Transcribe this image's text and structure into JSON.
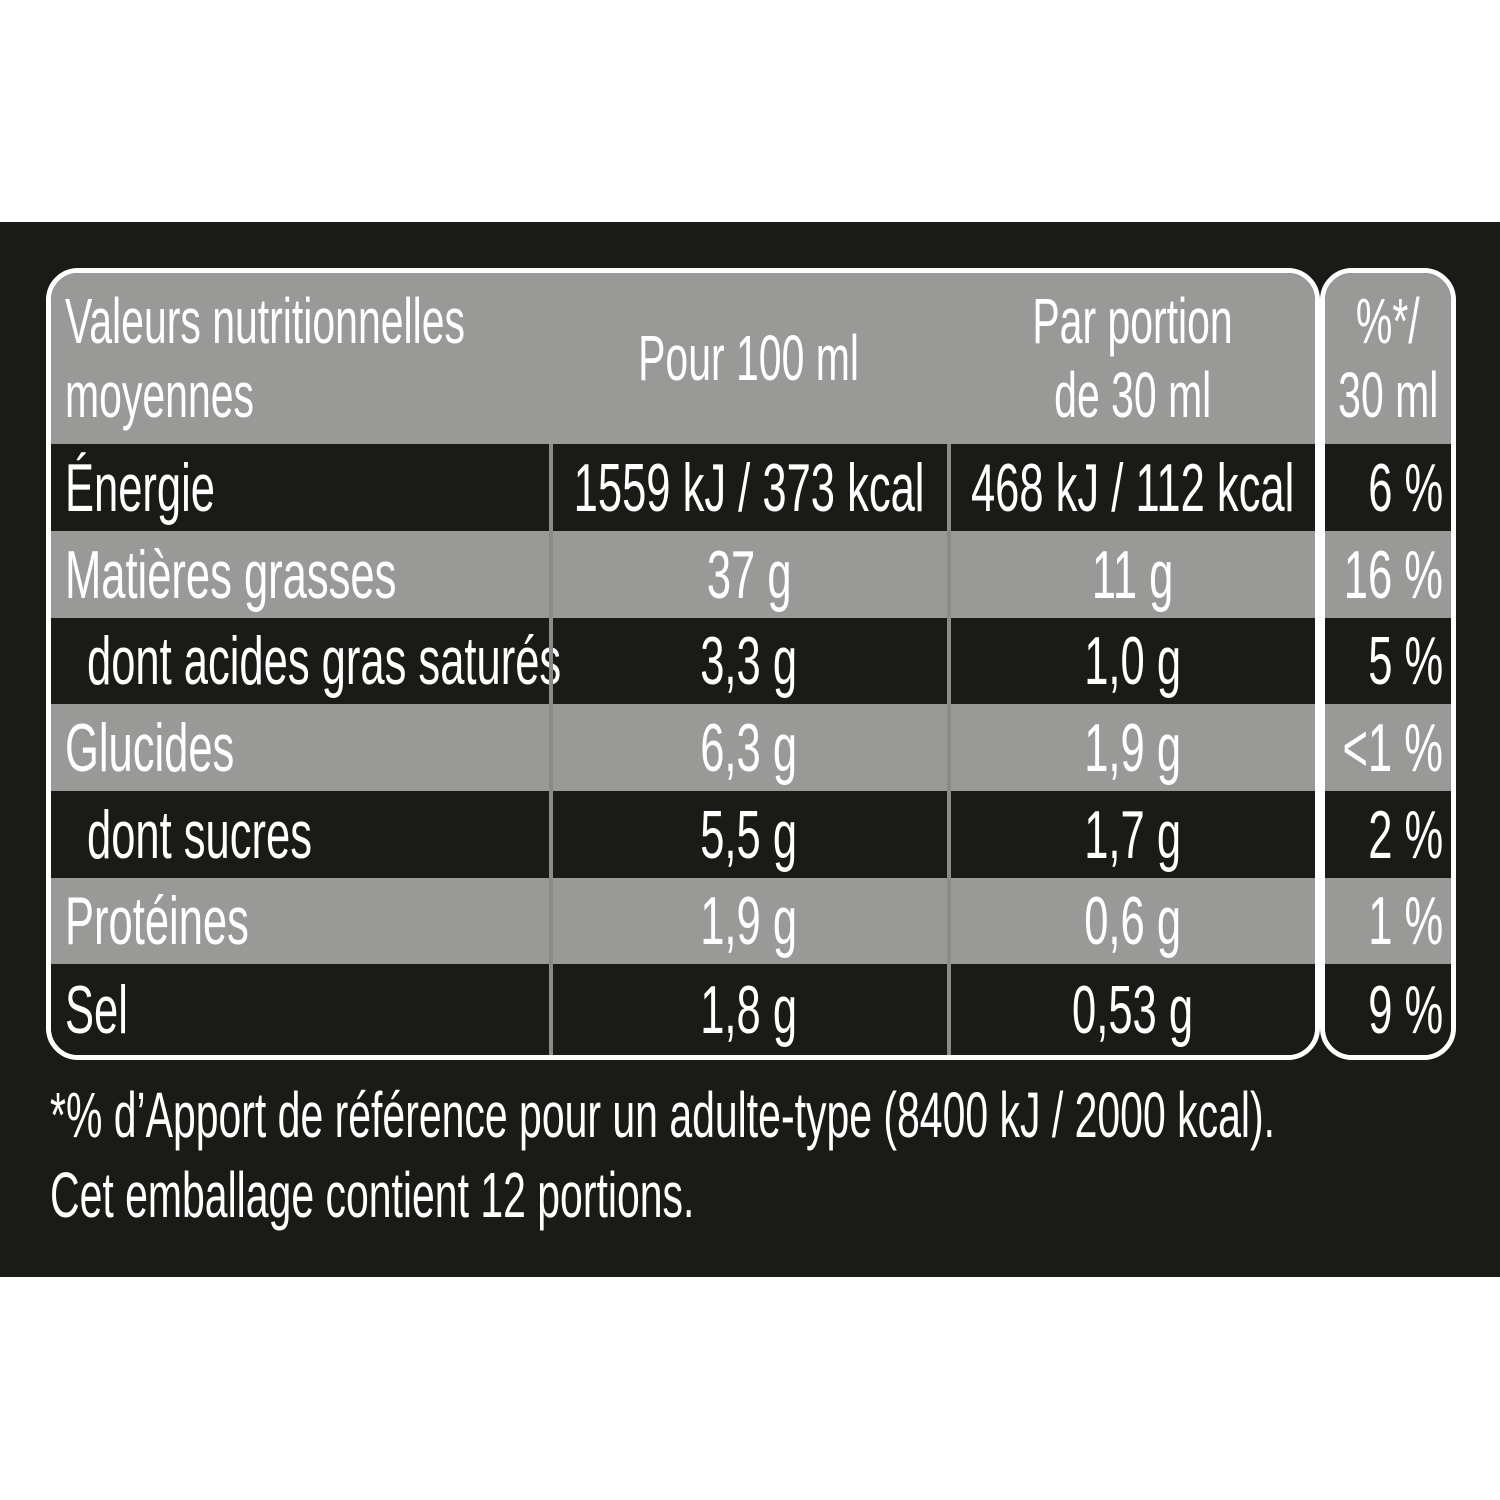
{
  "header": {
    "label_line1": "Valeurs nutritionnelles",
    "label_line2": "moyennes",
    "per100": "Pour 100 ml",
    "portion_line1": "Par portion",
    "portion_line2": "de 30 ml",
    "pct_line1": "%*/",
    "pct_line2": "30 ml"
  },
  "rows": [
    {
      "label": "Énergie",
      "per100": "1559 kJ / 373 kcal",
      "portion": "468 kJ / 112 kcal",
      "pct": "6 %"
    },
    {
      "label": "Matières grasses",
      "per100": "37 g",
      "portion": "11 g",
      "pct": "16 %"
    },
    {
      "label": "dont acides gras saturés",
      "per100": "3,3 g",
      "portion": "1,0 g",
      "pct": "5 %"
    },
    {
      "label": "Glucides",
      "per100": "6,3 g",
      "portion": "1,9 g",
      "pct": "<1 %"
    },
    {
      "label": "dont sucres",
      "per100": "5,5 g",
      "portion": "1,7 g",
      "pct": "2 %"
    },
    {
      "label": "Protéines",
      "per100": "1,9 g",
      "portion": "0,6 g",
      "pct": "1 %"
    },
    {
      "label": "Sel",
      "per100": "1,8 g",
      "portion": "0,53 g",
      "pct": "9 %"
    }
  ],
  "footnote": {
    "line1": "*% d’Apport de référence pour un adulte-type (8400 kJ / 2000 kcal).",
    "line2": "Cet emballage contient 12 portions."
  },
  "colors": {
    "background": "#1a1a17",
    "row_gray": "#999a98",
    "text": "#ffffff"
  }
}
